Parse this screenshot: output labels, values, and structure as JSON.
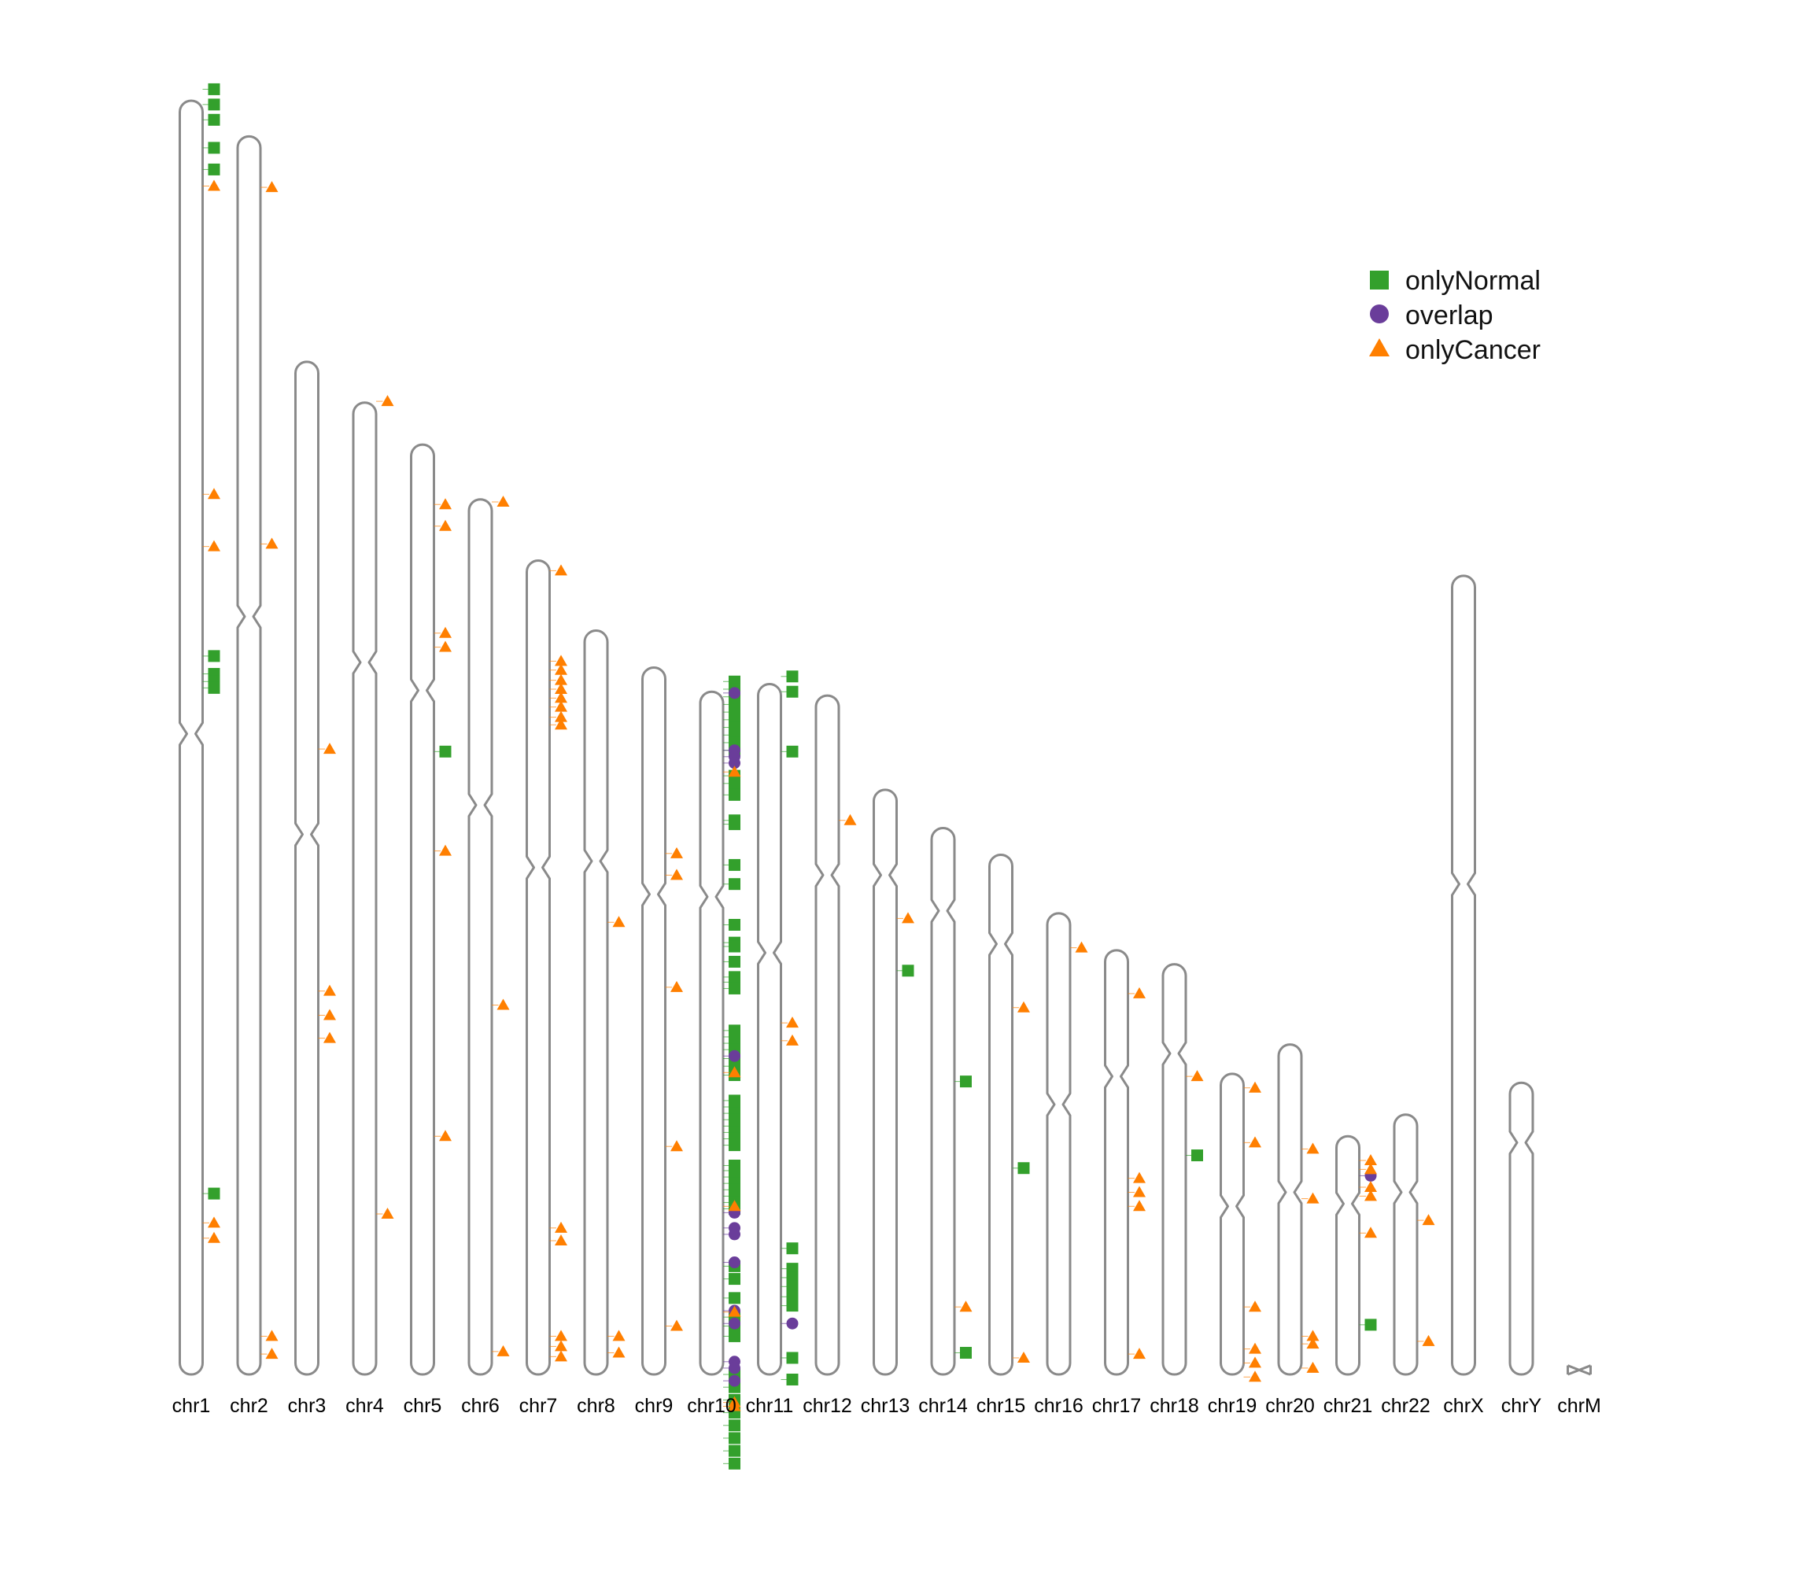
{
  "legend": [
    {
      "label": "onlyNormal",
      "shape": "square",
      "color": "#33a02c"
    },
    {
      "label": "overlap",
      "shape": "circle",
      "color": "#6a3d9a"
    },
    {
      "label": "onlyCancer",
      "shape": "triangle",
      "color": "#ff7f00"
    }
  ],
  "chr_outline_color": "#8a8a8a",
  "chromosomes": [
    {
      "name": "chr1",
      "start": 0.0,
      "end": 1.0,
      "centromere": 0.497
    },
    {
      "name": "chr2",
      "start": 0.028,
      "end": 1.0,
      "centromere": 0.405
    },
    {
      "name": "chr3",
      "start": 0.205,
      "end": 1.0,
      "centromere": 0.576
    },
    {
      "name": "chr4",
      "start": 0.237,
      "end": 1.0,
      "centromere": 0.441
    },
    {
      "name": "chr5",
      "start": 0.27,
      "end": 1.0,
      "centromere": 0.463
    },
    {
      "name": "chr6",
      "start": 0.313,
      "end": 1.0,
      "centromere": 0.553
    },
    {
      "name": "chr7",
      "start": 0.361,
      "end": 1.0,
      "centromere": 0.602
    },
    {
      "name": "chr8",
      "start": 0.416,
      "end": 1.0,
      "centromere": 0.597
    },
    {
      "name": "chr9",
      "start": 0.445,
      "end": 1.0,
      "centromere": 0.623
    },
    {
      "name": "chr10",
      "start": 0.464,
      "end": 1.0,
      "centromere": 0.625
    },
    {
      "name": "chr11",
      "start": 0.458,
      "end": 1.0,
      "centromere": 0.669
    },
    {
      "name": "chr12",
      "start": 0.467,
      "end": 1.0,
      "centromere": 0.608
    },
    {
      "name": "chr13",
      "start": 0.541,
      "end": 1.0,
      "centromere": 0.608
    },
    {
      "name": "chr14",
      "start": 0.571,
      "end": 1.0,
      "centromere": 0.636
    },
    {
      "name": "chr15",
      "start": 0.592,
      "end": 1.0,
      "centromere": 0.662
    },
    {
      "name": "chr16",
      "start": 0.638,
      "end": 1.0,
      "centromere": 0.788
    },
    {
      "name": "chr17",
      "start": 0.667,
      "end": 1.0,
      "centromere": 0.766
    },
    {
      "name": "chr18",
      "start": 0.678,
      "end": 1.0,
      "centromere": 0.748
    },
    {
      "name": "chr19",
      "start": 0.764,
      "end": 1.0,
      "centromere": 0.868
    },
    {
      "name": "chr20",
      "start": 0.741,
      "end": 1.0,
      "centromere": 0.857
    },
    {
      "name": "chr21",
      "start": 0.813,
      "end": 1.0,
      "centromere": 0.866
    },
    {
      "name": "chr22",
      "start": 0.796,
      "end": 1.0,
      "centromere": 0.857
    },
    {
      "name": "chrX",
      "start": 0.373,
      "end": 1.0,
      "centromere": 0.615
    },
    {
      "name": "chrY",
      "start": 0.771,
      "end": 1.0,
      "centromere": 0.818
    },
    {
      "name": "chrM",
      "start": 0.993,
      "end": 1.0,
      "centromere": 0.996
    }
  ],
  "markers": {
    "onlyNormal": [
      [
        "chr1",
        -0.009
      ],
      [
        "chr1",
        0.003
      ],
      [
        "chr1",
        0.015
      ],
      [
        "chr1",
        0.037
      ],
      [
        "chr1",
        0.054
      ],
      [
        "chr1",
        0.436
      ],
      [
        "chr1",
        0.45
      ],
      [
        "chr1",
        0.456
      ],
      [
        "chr1",
        0.461
      ],
      [
        "chr1",
        0.858
      ],
      [
        "chr5",
        0.511
      ],
      [
        "chr10",
        0.456
      ],
      [
        "chr10",
        0.462
      ],
      [
        "chr10",
        0.468
      ],
      [
        "chr10",
        0.474
      ],
      [
        "chr10",
        0.48
      ],
      [
        "chr10",
        0.486
      ],
      [
        "chr10",
        0.492
      ],
      [
        "chr10",
        0.498
      ],
      [
        "chr10",
        0.504
      ],
      [
        "chr10",
        0.51
      ],
      [
        "chr10",
        0.53
      ],
      [
        "chr10",
        0.536
      ],
      [
        "chr10",
        0.545
      ],
      [
        "chr10",
        0.565
      ],
      [
        "chr10",
        0.568
      ],
      [
        "chr10",
        0.6
      ],
      [
        "chr10",
        0.615
      ],
      [
        "chr10",
        0.647
      ],
      [
        "chr10",
        0.661
      ],
      [
        "chr10",
        0.664
      ],
      [
        "chr10",
        0.676
      ],
      [
        "chr10",
        0.688
      ],
      [
        "chr10",
        0.692
      ],
      [
        "chr10",
        0.697
      ],
      [
        "chr10",
        0.73
      ],
      [
        "chr10",
        0.735
      ],
      [
        "chr10",
        0.74
      ],
      [
        "chr10",
        0.745
      ],
      [
        "chr10",
        0.752
      ],
      [
        "chr10",
        0.758
      ],
      [
        "chr10",
        0.765
      ],
      [
        "chr10",
        0.785
      ],
      [
        "chr10",
        0.79
      ],
      [
        "chr10",
        0.795
      ],
      [
        "chr10",
        0.8
      ],
      [
        "chr10",
        0.805
      ],
      [
        "chr10",
        0.81
      ],
      [
        "chr10",
        0.815
      ],
      [
        "chr10",
        0.82
      ],
      [
        "chr10",
        0.836
      ],
      [
        "chr10",
        0.84
      ],
      [
        "chr10",
        0.845
      ],
      [
        "chr10",
        0.85
      ],
      [
        "chr10",
        0.855
      ],
      [
        "chr10",
        0.86
      ],
      [
        "chr10",
        0.865
      ],
      [
        "chr10",
        0.87
      ],
      [
        "chr10",
        0.915
      ],
      [
        "chr10",
        0.925
      ],
      [
        "chr10",
        0.94
      ],
      [
        "chr10",
        0.955
      ],
      [
        "chr10",
        0.962
      ],
      [
        "chr10",
        0.97
      ],
      [
        "chr10",
        1.0
      ],
      [
        "chr10",
        1.01
      ],
      [
        "chr10",
        1.02
      ],
      [
        "chr10",
        1.03
      ],
      [
        "chr10",
        1.04
      ],
      [
        "chr10",
        1.05
      ],
      [
        "chr10",
        1.06
      ],
      [
        "chr10",
        1.07
      ],
      [
        "chr11",
        0.452
      ],
      [
        "chr11",
        0.464
      ],
      [
        "chr11",
        0.511
      ],
      [
        "chr11",
        0.901
      ],
      [
        "chr11",
        0.917
      ],
      [
        "chr11",
        0.924
      ],
      [
        "chr11",
        0.931
      ],
      [
        "chr11",
        0.939
      ],
      [
        "chr11",
        0.946
      ],
      [
        "chr11",
        0.987
      ],
      [
        "chr11",
        1.004
      ],
      [
        "chr13",
        0.683
      ],
      [
        "chr14",
        0.77
      ],
      [
        "chr14",
        0.983
      ],
      [
        "chr15",
        0.838
      ],
      [
        "chr18",
        0.828
      ],
      [
        "chr21",
        0.961
      ]
    ],
    "overlap": [
      [
        "chr10",
        0.465
      ],
      [
        "chr10",
        0.51
      ],
      [
        "chr10",
        0.515
      ],
      [
        "chr10",
        0.52
      ],
      [
        "chr10",
        0.75
      ],
      [
        "chr10",
        0.873
      ],
      [
        "chr10",
        0.885
      ],
      [
        "chr10",
        0.89
      ],
      [
        "chr10",
        0.912
      ],
      [
        "chr10",
        0.95
      ],
      [
        "chr10",
        0.96
      ],
      [
        "chr10",
        0.99
      ],
      [
        "chr10",
        0.995
      ],
      [
        "chr10",
        1.005
      ],
      [
        "chr11",
        0.96
      ],
      [
        "chr21",
        0.844
      ]
    ],
    "onlyCancer": [
      [
        "chr1",
        0.067
      ],
      [
        "chr1",
        0.309
      ],
      [
        "chr1",
        0.35
      ],
      [
        "chr1",
        0.881
      ],
      [
        "chr1",
        0.893
      ],
      [
        "chr2",
        0.068
      ],
      [
        "chr2",
        0.348
      ],
      [
        "chr2",
        0.97
      ],
      [
        "chr2",
        0.984
      ],
      [
        "chr3",
        0.509
      ],
      [
        "chr3",
        0.699
      ],
      [
        "chr3",
        0.718
      ],
      [
        "chr3",
        0.736
      ],
      [
        "chr4",
        0.236
      ],
      [
        "chr4",
        0.874
      ],
      [
        "chr5",
        0.317
      ],
      [
        "chr5",
        0.334
      ],
      [
        "chr5",
        0.418
      ],
      [
        "chr5",
        0.429
      ],
      [
        "chr5",
        0.589
      ],
      [
        "chr5",
        0.813
      ],
      [
        "chr6",
        0.315
      ],
      [
        "chr6",
        0.71
      ],
      [
        "chr6",
        0.982
      ],
      [
        "chr7",
        0.369
      ],
      [
        "chr7",
        0.44
      ],
      [
        "chr7",
        0.447
      ],
      [
        "chr7",
        0.455
      ],
      [
        "chr7",
        0.462
      ],
      [
        "chr7",
        0.469
      ],
      [
        "chr7",
        0.476
      ],
      [
        "chr7",
        0.484
      ],
      [
        "chr7",
        0.49
      ],
      [
        "chr7",
        0.885
      ],
      [
        "chr7",
        0.895
      ],
      [
        "chr7",
        0.97
      ],
      [
        "chr7",
        0.978
      ],
      [
        "chr7",
        0.986
      ],
      [
        "chr8",
        0.645
      ],
      [
        "chr8",
        0.97
      ],
      [
        "chr8",
        0.983
      ],
      [
        "chr9",
        0.591
      ],
      [
        "chr9",
        0.608
      ],
      [
        "chr9",
        0.696
      ],
      [
        "chr9",
        0.821
      ],
      [
        "chr9",
        0.962
      ],
      [
        "chr10",
        0.527
      ],
      [
        "chr10",
        0.763
      ],
      [
        "chr10",
        0.868
      ],
      [
        "chr10",
        0.951
      ],
      [
        "chr10",
        1.022
      ],
      [
        "chr10",
        1.025
      ],
      [
        "chr11",
        0.724
      ],
      [
        "chr11",
        0.738
      ],
      [
        "chr12",
        0.565
      ],
      [
        "chr13",
        0.642
      ],
      [
        "chr14",
        0.947
      ],
      [
        "chr15",
        0.712
      ],
      [
        "chr15",
        0.987
      ],
      [
        "chr16",
        0.665
      ],
      [
        "chr17",
        0.701
      ],
      [
        "chr17",
        0.846
      ],
      [
        "chr17",
        0.857
      ],
      [
        "chr17",
        0.868
      ],
      [
        "chr17",
        0.984
      ],
      [
        "chr18",
        0.766
      ],
      [
        "chr19",
        0.775
      ],
      [
        "chr19",
        0.818
      ],
      [
        "chr19",
        0.947
      ],
      [
        "chr19",
        0.98
      ],
      [
        "chr19",
        0.991
      ],
      [
        "chr19",
        1.002
      ],
      [
        "chr20",
        0.823
      ],
      [
        "chr20",
        0.862
      ],
      [
        "chr20",
        0.97
      ],
      [
        "chr20",
        0.976
      ],
      [
        "chr20",
        0.995
      ],
      [
        "chr21",
        0.832
      ],
      [
        "chr21",
        0.839
      ],
      [
        "chr21",
        0.853
      ],
      [
        "chr21",
        0.86
      ],
      [
        "chr21",
        0.889
      ],
      [
        "chr22",
        0.879
      ],
      [
        "chr22",
        0.974
      ]
    ]
  }
}
